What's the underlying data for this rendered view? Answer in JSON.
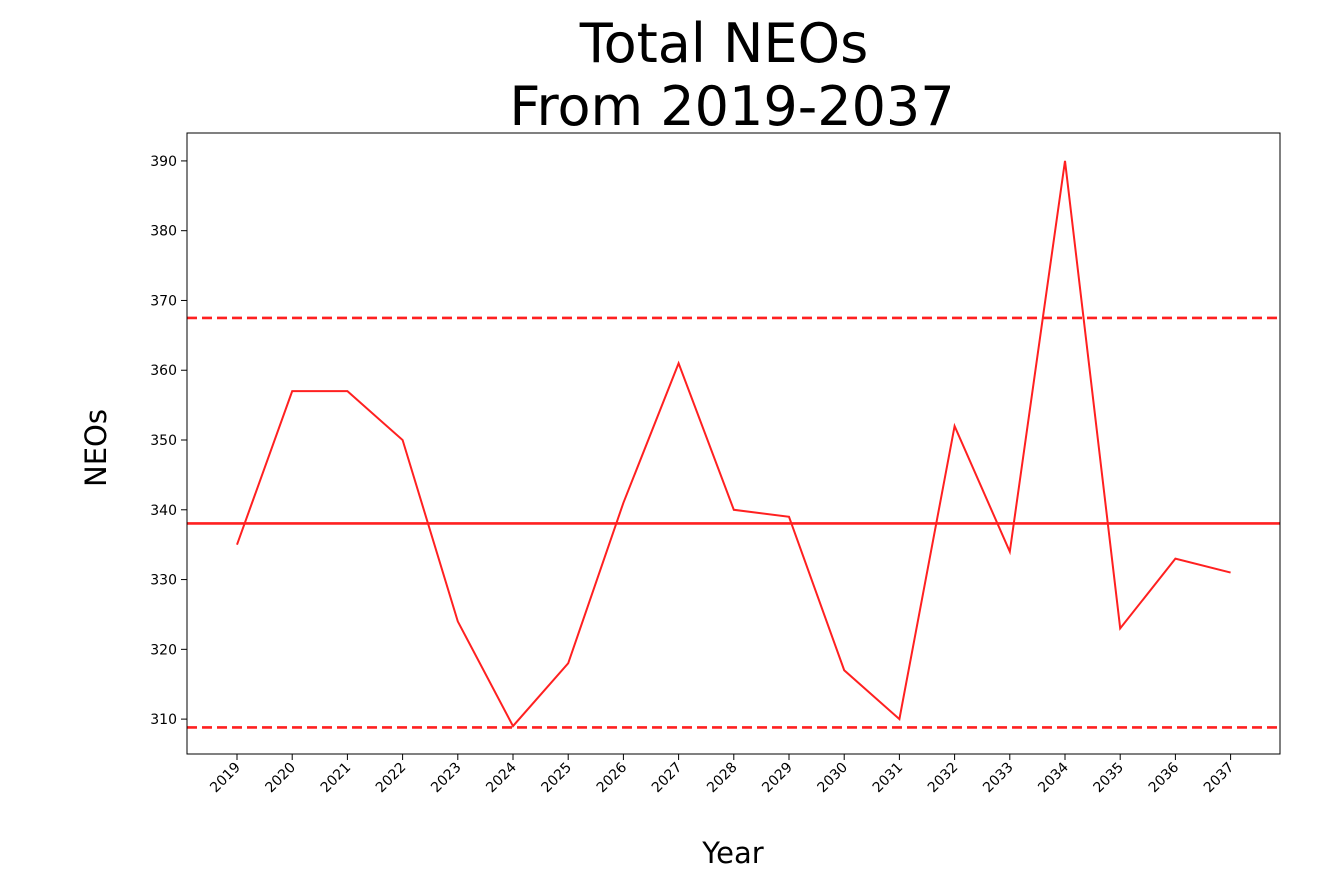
{
  "chart_data": {
    "type": "line",
    "title": [
      "Total NEOs",
      "From 2019-2037"
    ],
    "xlabel": "Year",
    "ylabel": "NEOs",
    "x": [
      "2019",
      "2020",
      "2021",
      "2022",
      "2023",
      "2024",
      "2025",
      "2026",
      "2027",
      "2028",
      "2029",
      "2030",
      "2031",
      "2032",
      "2033",
      "2034",
      "2035",
      "2036",
      "2037"
    ],
    "series": [
      {
        "values": [
          335,
          357,
          357,
          350,
          324,
          309,
          318,
          341,
          361,
          340,
          339,
          317,
          310,
          352,
          334,
          390,
          323,
          333,
          331
        ],
        "color": "#ff2020"
      }
    ],
    "hlines": [
      {
        "y": 338.05,
        "style": "solid",
        "color": "#ff2020"
      },
      {
        "y": 367.5,
        "style": "dashed",
        "color": "#ff2020"
      },
      {
        "y": 308.8,
        "style": "dashed",
        "color": "#ff2020"
      }
    ],
    "ylim": [
      305,
      394
    ],
    "yticks": [
      310,
      320,
      330,
      340,
      350,
      360,
      370,
      380,
      390
    ],
    "xtick_rotation": -45,
    "grid": false,
    "legend": "none"
  }
}
